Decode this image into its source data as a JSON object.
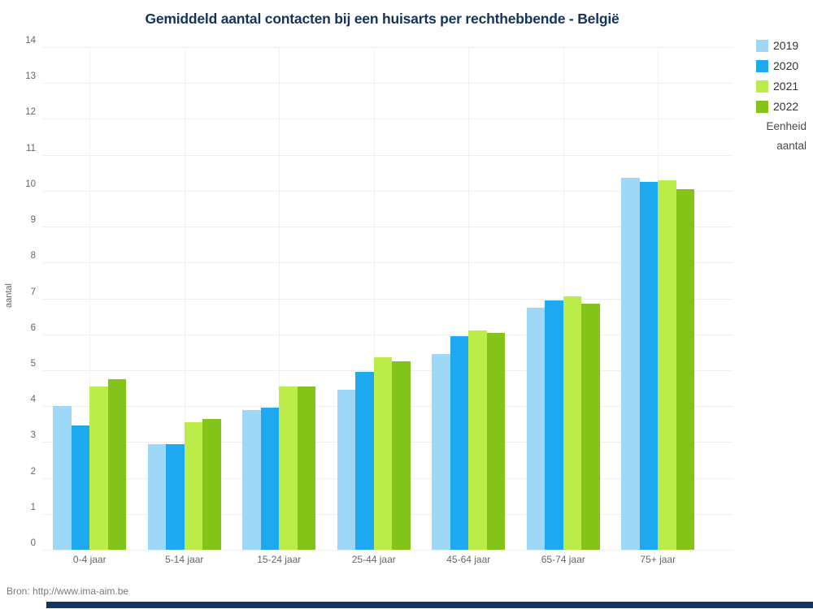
{
  "title": "Gemiddeld aantal contacten bij een huisarts per rechthebbende - België",
  "source": "Bron: http://www.ima-aim.be",
  "chart_data": {
    "type": "bar",
    "title": "Gemiddeld aantal contacten bij een huisarts per rechthebbende - België",
    "categories": [
      "0-4 jaar",
      "5-14 jaar",
      "15-24 jaar",
      "25-44 jaar",
      "45-64 jaar",
      "65-74 jaar",
      "75+ jaar"
    ],
    "series": [
      {
        "name": "2019",
        "color": "#9FD7F6",
        "values": [
          4.0,
          2.95,
          3.9,
          4.45,
          5.45,
          6.75,
          10.35
        ]
      },
      {
        "name": "2020",
        "color": "#1EA8F0",
        "values": [
          3.45,
          2.95,
          3.95,
          4.95,
          5.95,
          6.95,
          10.25
        ]
      },
      {
        "name": "2021",
        "color": "#BCEC4A",
        "values": [
          4.55,
          3.55,
          4.55,
          5.35,
          6.1,
          7.05,
          10.3
        ]
      },
      {
        "name": "2022",
        "color": "#84C318",
        "values": [
          4.75,
          3.65,
          4.55,
          5.25,
          6.05,
          6.85,
          10.05
        ]
      }
    ],
    "xlabel": "",
    "ylabel": "aantal",
    "ylim": [
      0,
      14
    ],
    "ytick_step": 1,
    "grid": true,
    "legend_position": "top-right",
    "unit": {
      "label": "Eenheid",
      "value": "aantal"
    }
  },
  "colors": {
    "title": "#14335D",
    "axis_text": "#666666",
    "gridline": "#efefef",
    "bottom_bar": "#17345F"
  }
}
